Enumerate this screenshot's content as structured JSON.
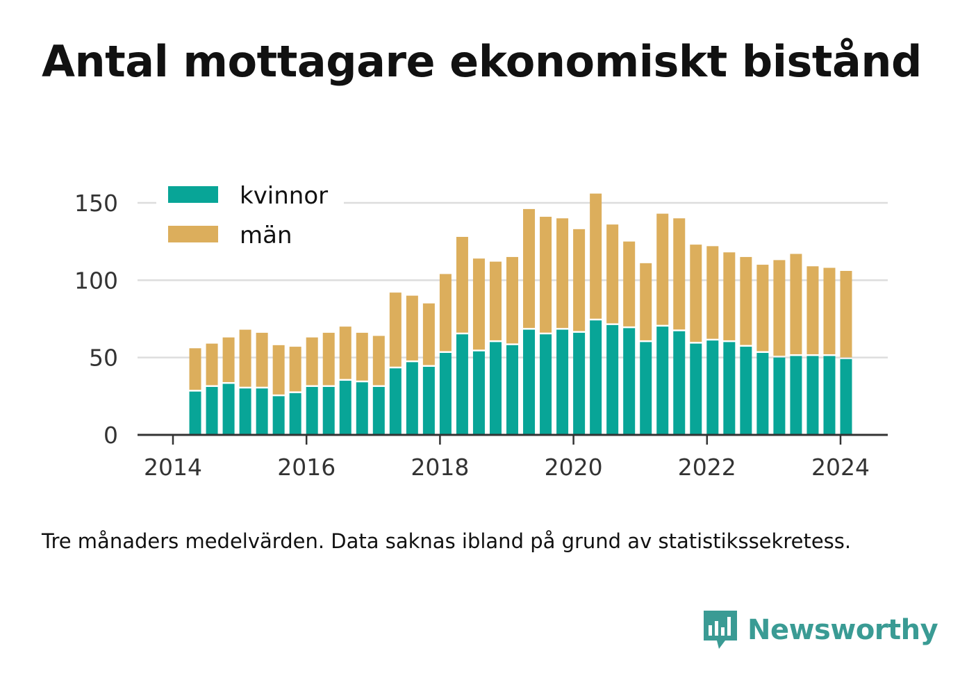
{
  "title": "Antal mottagare ekonomiskt bistånd",
  "caption": "Tre månaders medelvärden. Data saknas ibland på grund av statistikssekretess.",
  "brand": {
    "name": "Newsworthy",
    "color": "#3a9b94",
    "icon": "newsworthy-logo-icon"
  },
  "colors": {
    "kvinnor": "#08a597",
    "man": "#dcae5c",
    "grid": "#dddddd",
    "axis": "#333333"
  },
  "chart_data": {
    "type": "bar",
    "stacked": true,
    "grid": true,
    "legend_position": "top-left",
    "ylim": [
      0,
      150
    ],
    "yticks": [
      0,
      50,
      100,
      150
    ],
    "xticks": [
      "2014",
      "2016",
      "2018",
      "2020",
      "2022",
      "2024"
    ],
    "categories": [
      "2014-05",
      "2014-08",
      "2014-11",
      "2015-02",
      "2015-05",
      "2015-08",
      "2015-11",
      "2016-02",
      "2016-05",
      "2016-08",
      "2016-11",
      "2017-02",
      "2017-05",
      "2017-08",
      "2017-11",
      "2018-02",
      "2018-05",
      "2018-08",
      "2018-11",
      "2019-02",
      "2019-05",
      "2019-08",
      "2019-11",
      "2020-02",
      "2020-05",
      "2020-08",
      "2020-11",
      "2021-02",
      "2021-05",
      "2021-08",
      "2021-11",
      "2022-02",
      "2022-05",
      "2022-08",
      "2022-11",
      "2023-02",
      "2023-05",
      "2023-08",
      "2023-11",
      "2024-02"
    ],
    "series": [
      {
        "name": "kvinnor",
        "values": [
          28,
          31,
          33,
          30,
          30,
          25,
          27,
          31,
          31,
          35,
          34,
          31,
          43,
          47,
          44,
          53,
          65,
          54,
          60,
          58,
          68,
          65,
          68,
          66,
          74,
          71,
          69,
          60,
          70,
          67,
          59,
          61,
          60,
          57,
          53,
          50,
          51,
          51,
          51,
          49
        ]
      },
      {
        "name": "män",
        "values": [
          28,
          28,
          30,
          38,
          36,
          33,
          30,
          32,
          35,
          35,
          32,
          33,
          49,
          43,
          41,
          51,
          63,
          60,
          52,
          57,
          78,
          76,
          72,
          67,
          82,
          65,
          56,
          51,
          73,
          73,
          64,
          61,
          58,
          58,
          57,
          63,
          66,
          58,
          57,
          57
        ]
      }
    ]
  }
}
